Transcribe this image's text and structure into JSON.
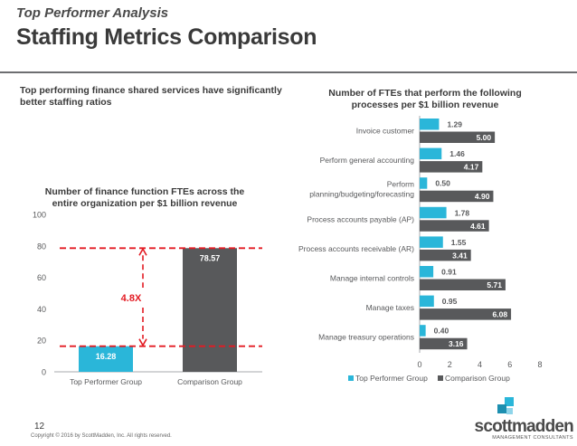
{
  "header": {
    "kicker": "Top Performer Analysis",
    "title": "Staffing Metrics Comparison",
    "subtitle": "Top performing finance shared services have significantly better staffing ratios"
  },
  "colors": {
    "top": "#2ab6d9",
    "comparison": "#58595b",
    "annotation": "#e31b23"
  },
  "chart_data": [
    {
      "type": "bar",
      "title": "Number of finance function FTEs across the entire organization per $1 billion revenue",
      "categories": [
        "Top Performer Group",
        "Comparison Group"
      ],
      "values": [
        16.28,
        78.57
      ],
      "value_labels": [
        "16.28",
        "78.57"
      ],
      "ylim": [
        0,
        100
      ],
      "yticks": [
        0,
        20,
        40,
        60,
        80,
        100
      ],
      "annotation": "4.8X",
      "grid": false
    },
    {
      "type": "bar",
      "orientation": "horizontal",
      "title": "Number of FTEs that perform the following processes per $1 billion revenue",
      "categories": [
        "Invoice customer",
        "Perform general accounting",
        "Perform planning/budgeting/forecasting",
        "Process accounts payable (AP)",
        "Process accounts receivable (AR)",
        "Manage internal controls",
        "Manage taxes",
        "Manage treasury operations"
      ],
      "series": [
        {
          "name": "Top Performer Group",
          "values": [
            1.29,
            1.46,
            0.5,
            1.78,
            1.55,
            0.91,
            0.95,
            0.4
          ],
          "labels": [
            "1.29",
            "1.46",
            "0.50",
            "1.78",
            "1.55",
            "0.91",
            "0.95",
            "0.40"
          ]
        },
        {
          "name": "Comparison Group",
          "values": [
            5.0,
            4.17,
            4.9,
            4.61,
            3.41,
            5.71,
            6.08,
            3.16
          ],
          "labels": [
            "5.00",
            "4.17",
            "4.90",
            "4.61",
            "3.41",
            "5.71",
            "6.08",
            "3.16"
          ]
        }
      ],
      "xlim": [
        0,
        8
      ],
      "xticks": [
        0,
        2,
        4,
        6,
        8
      ],
      "legend": "bottom",
      "grid": false
    }
  ],
  "footer": {
    "page_number": "12",
    "copyright": "Copyright © 2016 by ScottMadden, Inc. All rights reserved.",
    "logo_text": "scottmadden",
    "logo_tagline": "MANAGEMENT CONSULTANTS"
  }
}
